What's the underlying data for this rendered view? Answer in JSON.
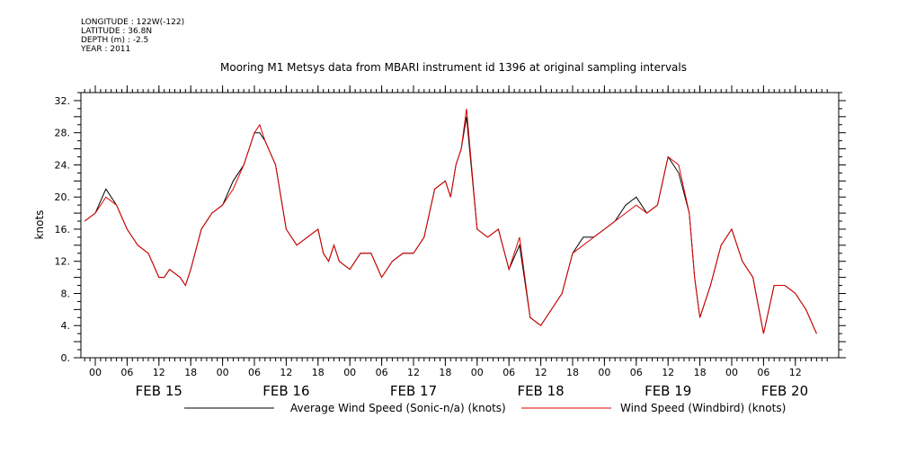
{
  "meta": {
    "longitude": "LONGITUDE : 122W(-122)",
    "latitude": "LATITUDE : 36.8N",
    "depth": "DEPTH (m) : -2.5",
    "year": "YEAR : 2011"
  },
  "chart_data": {
    "type": "line",
    "title": "Mooring M1 Metsys data from MBARI instrument id 1396 at original sampling intervals",
    "ylabel": "knots",
    "xlabel": "",
    "ylim": [
      0,
      33
    ],
    "yticks": [
      0,
      4,
      8,
      12,
      16,
      20,
      24,
      28,
      32
    ],
    "ytick_labels": [
      "0.",
      "4.",
      "8.",
      "12.",
      "16.",
      "20.",
      "24.",
      "28.",
      "32."
    ],
    "xlim_hours": [
      -3,
      138
    ],
    "hour_ticks": [
      0,
      6,
      12,
      18,
      24,
      30,
      36,
      42,
      48,
      54,
      60,
      66,
      72,
      78,
      84,
      90,
      96,
      102,
      108,
      114,
      120,
      126,
      132
    ],
    "hour_tick_labels": [
      "00",
      "06",
      "12",
      "18",
      "00",
      "06",
      "12",
      "18",
      "00",
      "06",
      "12",
      "18",
      "00",
      "06",
      "12",
      "18",
      "00",
      "06",
      "12",
      "18",
      "00",
      "06",
      "12"
    ],
    "day_labels": [
      {
        "label": "FEB 15",
        "hour": 12
      },
      {
        "label": "FEB 16",
        "hour": 36
      },
      {
        "label": "FEB 17",
        "hour": 60
      },
      {
        "label": "FEB 18",
        "hour": 84
      },
      {
        "label": "FEB 19",
        "hour": 108
      },
      {
        "label": "FEB 20",
        "hour": 130
      }
    ],
    "grid": false,
    "legend_position": "bottom",
    "hours": [
      -2,
      0,
      2,
      4,
      6,
      7,
      8,
      10,
      12,
      13,
      14,
      16,
      17,
      18,
      20,
      22,
      24,
      26,
      28,
      30,
      31,
      32,
      34,
      36,
      38,
      40,
      42,
      43,
      44,
      45,
      46,
      48,
      50,
      52,
      54,
      56,
      58,
      60,
      62,
      64,
      66,
      67,
      68,
      69,
      70,
      72,
      74,
      76,
      78,
      80,
      82,
      84,
      86,
      88,
      90,
      92,
      94,
      96,
      98,
      100,
      102,
      104,
      106,
      108,
      110,
      112,
      113,
      114,
      116,
      118,
      120,
      122,
      124,
      126,
      128,
      130,
      132,
      134,
      136
    ],
    "series": [
      {
        "name": "Average Wind Speed (Sonic-n/a) (knots)",
        "color": "#000000",
        "values": [
          17,
          18,
          21,
          19,
          16,
          15,
          14,
          13,
          10,
          10,
          11,
          10,
          9,
          11,
          16,
          18,
          19,
          22,
          24,
          28,
          28,
          27,
          24,
          16,
          14,
          15,
          16,
          13,
          12,
          14,
          12,
          11,
          13,
          13,
          10,
          12,
          13,
          13,
          15,
          21,
          22,
          20,
          24,
          26,
          30,
          16,
          15,
          16,
          11,
          14,
          5,
          4,
          6,
          8,
          13,
          15,
          15,
          16,
          17,
          19,
          20,
          18,
          19,
          25,
          23,
          18,
          10,
          5,
          9,
          14,
          16,
          12,
          10,
          3,
          9,
          9,
          8,
          6,
          3
        ]
      },
      {
        "name": "Wind Speed (Windbird) (knots)",
        "color": "#dd0000",
        "values": [
          17,
          18,
          20,
          19,
          16,
          15,
          14,
          13,
          10,
          10,
          11,
          10,
          9,
          11,
          16,
          18,
          19,
          21,
          24,
          28,
          29,
          27,
          24,
          16,
          14,
          15,
          16,
          13,
          12,
          14,
          12,
          11,
          13,
          13,
          10,
          12,
          13,
          13,
          15,
          21,
          22,
          20,
          24,
          26,
          31,
          16,
          15,
          16,
          11,
          15,
          5,
          4,
          6,
          8,
          13,
          14,
          15,
          16,
          17,
          18,
          19,
          18,
          19,
          25,
          24,
          18,
          10,
          5,
          9,
          14,
          16,
          12,
          10,
          3,
          9,
          9,
          8,
          6,
          3
        ]
      }
    ]
  }
}
